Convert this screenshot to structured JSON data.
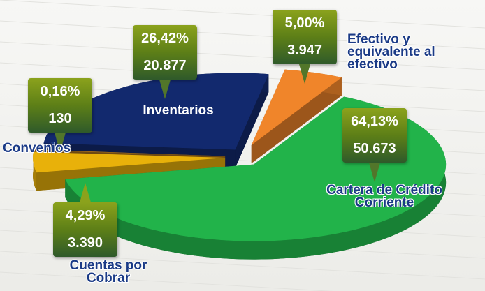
{
  "chart_data": {
    "type": "pie",
    "categories": [
      "Efectivo y equivalente al efectivo",
      "Cartera de Crédito Corriente",
      "Cuentas por Cobrar",
      "Convenios",
      "Inventarios"
    ],
    "values": [
      5.0,
      64.13,
      4.29,
      0.16,
      26.42
    ],
    "value_labels": [
      "5,00%",
      "64,13%",
      "4,29%",
      "0,16%",
      "26,42%"
    ],
    "amounts": [
      3947,
      50673,
      3390,
      130,
      20877
    ],
    "amount_labels": [
      "3.947",
      "50.673",
      "3.390",
      "130",
      "20.877"
    ],
    "colors": [
      "#f0852a",
      "#22b34a",
      "#e8b10a",
      "#a8701c",
      "#12296e"
    ]
  }
}
